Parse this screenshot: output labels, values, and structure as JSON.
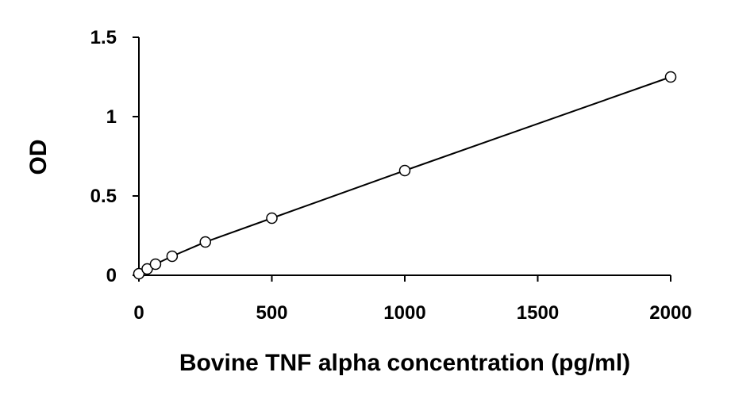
{
  "chart_data": {
    "type": "scatter",
    "title": "",
    "xlabel": "Bovine TNF alpha concentration (pg/ml)",
    "ylabel": "OD",
    "xlim": [
      0,
      2000
    ],
    "ylim": [
      0,
      1.5
    ],
    "xticks": [
      0,
      500,
      1000,
      1500,
      2000
    ],
    "xtick_labels": [
      "0",
      "500",
      "1000",
      "1500",
      "2000"
    ],
    "yticks": [
      0,
      0.5,
      1,
      1.5
    ],
    "ytick_labels": [
      "0",
      "0.5",
      "1",
      "1.5"
    ],
    "grid": false,
    "legend": "none",
    "series": [
      {
        "marker": "open-circle",
        "trendline": true,
        "x": [
          0,
          31.25,
          62.5,
          125,
          250,
          500,
          1000,
          2000
        ],
        "y": [
          0.01,
          0.04,
          0.07,
          0.12,
          0.21,
          0.36,
          0.66,
          1.25
        ]
      }
    ],
    "colors": {
      "line": "#000000",
      "marker_stroke": "#000000",
      "marker_fill": "#ffffff"
    }
  }
}
